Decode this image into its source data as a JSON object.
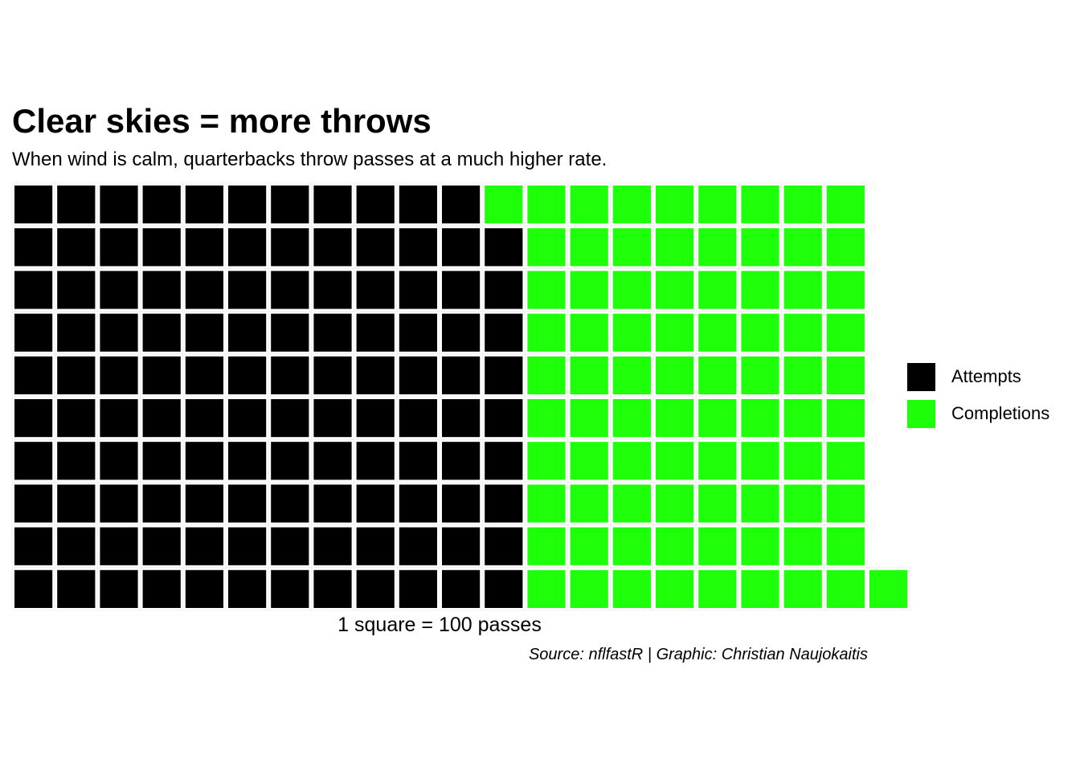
{
  "chart_data": {
    "type": "waffle",
    "title": "Clear skies = more throws",
    "subtitle": "When wind is calm, quarterbacks throw passes at a much higher rate.",
    "xlabel": "1 square = 100 passes",
    "ylabel": "",
    "caption": "Source: nflfastR | Graphic: Christian Naujokaitis",
    "rows": 10,
    "unit_value": 100,
    "fill_order": "column-wise, bottom to top",
    "series": [
      {
        "name": "Attempts",
        "squares": 119,
        "color": "#000000"
      },
      {
        "name": "Completions",
        "squares": 82,
        "color": "#1EFF0A"
      }
    ],
    "legend_position": "right",
    "grid": false
  }
}
